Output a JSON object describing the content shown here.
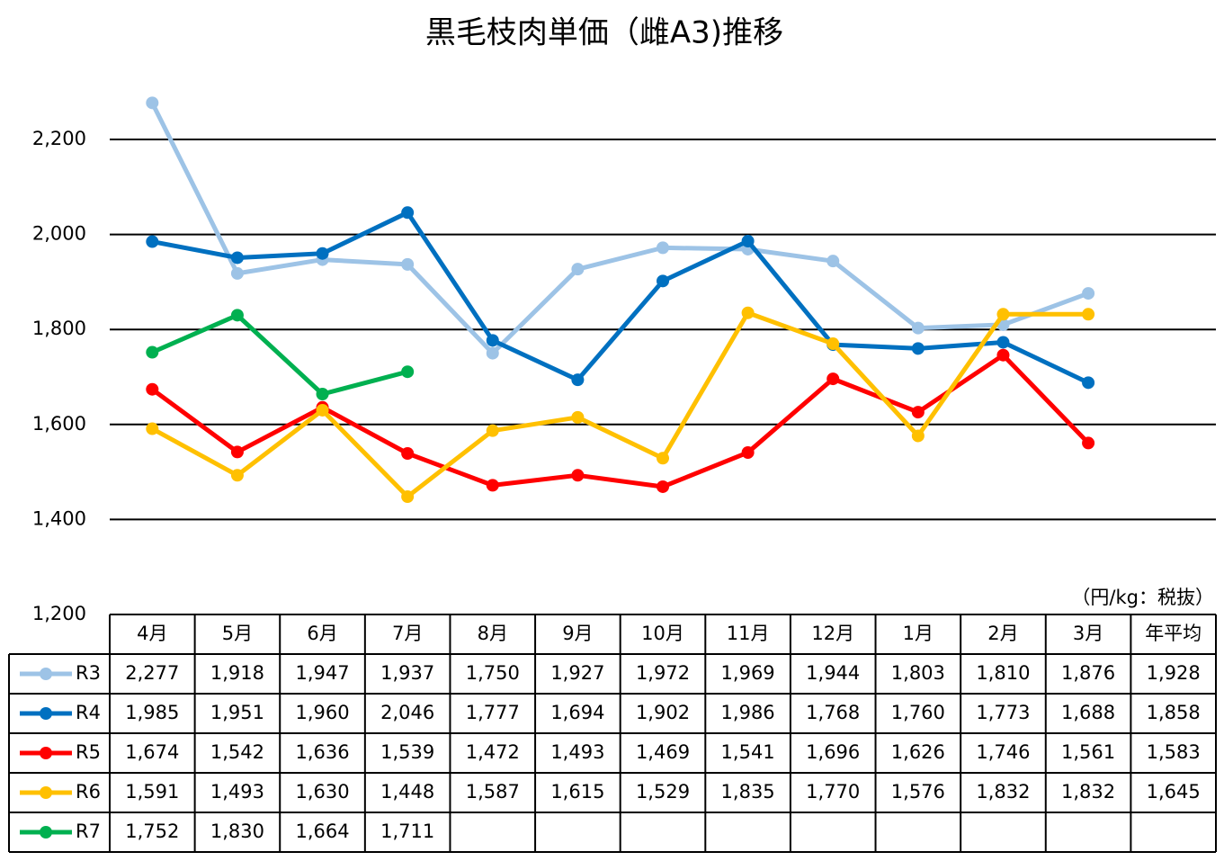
{
  "chart_data": {
    "type": "line",
    "title": "黒毛枝肉単価（雌A3)推移",
    "unit": "（円/kg：税抜）",
    "categories": [
      "4月",
      "5月",
      "6月",
      "7月",
      "8月",
      "9月",
      "10月",
      "11月",
      "12月",
      "1月",
      "2月",
      "3月"
    ],
    "average_header": "年平均",
    "ylim": [
      1200,
      2300
    ],
    "yticks": [
      {
        "value": 1200,
        "label": "1,200"
      },
      {
        "value": 1400,
        "label": "1,400"
      },
      {
        "value": 1600,
        "label": "1,600"
      },
      {
        "value": 1800,
        "label": "1,800"
      },
      {
        "value": 2000,
        "label": "2,000"
      },
      {
        "value": 2200,
        "label": "2,200"
      }
    ],
    "grid": true,
    "series": [
      {
        "name": "R3",
        "color": "#9dc3e6",
        "values": [
          2277,
          1918,
          1947,
          1937,
          1750,
          1927,
          1972,
          1969,
          1944,
          1803,
          1810,
          1876
        ],
        "value_labels": [
          "2,277",
          "1,918",
          "1,947",
          "1,937",
          "1,750",
          "1,927",
          "1,972",
          "1,969",
          "1,944",
          "1,803",
          "1,810",
          "1,876"
        ],
        "average": 1928,
        "average_label": "1,928"
      },
      {
        "name": "R4",
        "color": "#0070c0",
        "values": [
          1985,
          1951,
          1960,
          2046,
          1777,
          1694,
          1902,
          1986,
          1768,
          1760,
          1773,
          1688
        ],
        "value_labels": [
          "1,985",
          "1,951",
          "1,960",
          "2,046",
          "1,777",
          "1,694",
          "1,902",
          "1,986",
          "1,768",
          "1,760",
          "1,773",
          "1,688"
        ],
        "average": 1858,
        "average_label": "1,858"
      },
      {
        "name": "R5",
        "color": "#ff0000",
        "values": [
          1674,
          1542,
          1636,
          1539,
          1472,
          1493,
          1469,
          1541,
          1696,
          1626,
          1746,
          1561
        ],
        "value_labels": [
          "1,674",
          "1,542",
          "1,636",
          "1,539",
          "1,472",
          "1,493",
          "1,469",
          "1,541",
          "1,696",
          "1,626",
          "1,746",
          "1,561"
        ],
        "average": 1583,
        "average_label": "1,583"
      },
      {
        "name": "R6",
        "color": "#ffc000",
        "values": [
          1591,
          1493,
          1630,
          1448,
          1587,
          1615,
          1529,
          1835,
          1770,
          1576,
          1832,
          1832
        ],
        "value_labels": [
          "1,591",
          "1,493",
          "1,630",
          "1,448",
          "1,587",
          "1,615",
          "1,529",
          "1,835",
          "1,770",
          "1,576",
          "1,832",
          "1,832"
        ],
        "average": 1645,
        "average_label": "1,645"
      },
      {
        "name": "R7",
        "color": "#00b050",
        "values": [
          1752,
          1830,
          1664,
          1711,
          null,
          null,
          null,
          null,
          null,
          null,
          null,
          null
        ],
        "value_labels": [
          "1,752",
          "1,830",
          "1,664",
          "1,711",
          null,
          null,
          null,
          null,
          null,
          null,
          null,
          null
        ],
        "average": null,
        "average_label": null
      }
    ]
  }
}
